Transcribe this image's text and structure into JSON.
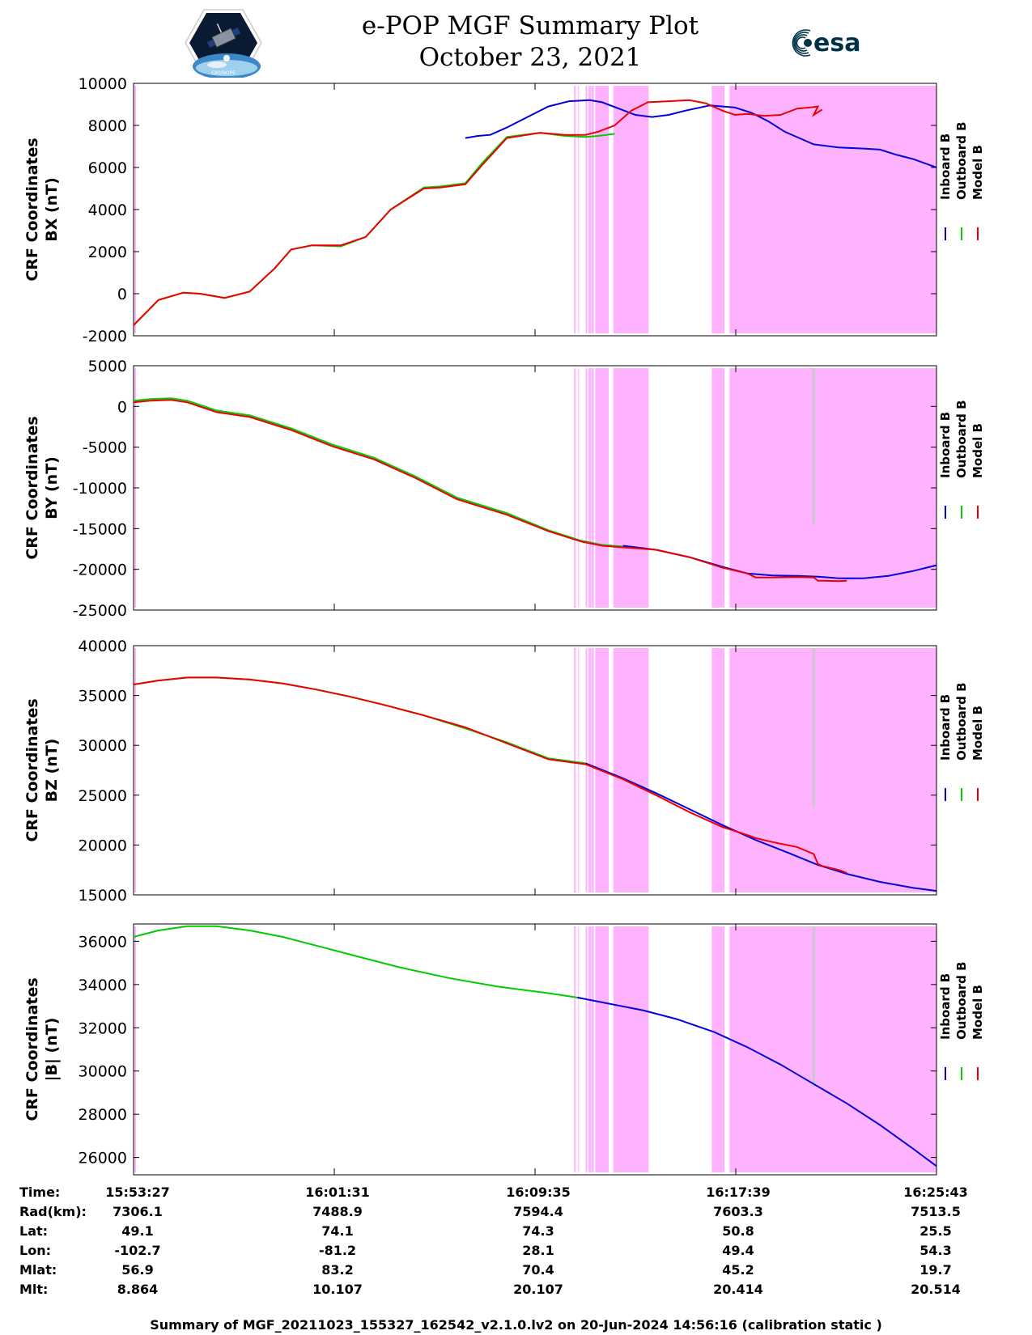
{
  "header": {
    "title": "e-POP MGF Summary Plot",
    "date": "October 23, 2021",
    "left_logo_icon": "cassiope-mission-logo",
    "left_logo_text": "CASSIOPE",
    "right_logo_icon": "esa-logo",
    "right_logo_text": "esa"
  },
  "colors": {
    "inboard": "#0000dd",
    "outboard": "#00cc00",
    "model": "#ee0000",
    "shade": "#ffb3ff",
    "spike": "#c8c8c8"
  },
  "chart_data": [
    {
      "type": "line",
      "ylabel": "CRF Coordinates\nBX (nT)",
      "ylim": [
        -2000,
        10000
      ],
      "yticks": [
        -2000,
        0,
        2000,
        4000,
        6000,
        8000,
        10000
      ],
      "xlim": [
        0,
        1936
      ],
      "series": [
        {
          "name": "Inboard B",
          "color": "#0000dd",
          "x": [
            800,
            830,
            860,
            900,
            960,
            1000,
            1050,
            1100,
            1130,
            1170,
            1210,
            1250,
            1290,
            1330,
            1390,
            1450,
            1490,
            1530,
            1570,
            1640,
            1700,
            1760,
            1800,
            1840,
            1880,
            1936
          ],
          "y": [
            7400,
            7500,
            7550,
            7900,
            8500,
            8900,
            9150,
            9200,
            9100,
            8800,
            8500,
            8400,
            8500,
            8700,
            8950,
            8850,
            8600,
            8200,
            7700,
            7100,
            6950,
            6900,
            6850,
            6600,
            6400,
            6000
          ]
        },
        {
          "name": "Outboard B",
          "color": "#00cc00",
          "x": [
            0,
            60,
            120,
            160,
            220,
            280,
            340,
            380,
            430,
            500,
            560,
            620,
            700,
            740,
            800,
            840,
            900,
            980,
            1040,
            1090,
            1120,
            1160
          ],
          "y": [
            -1500,
            -300,
            50,
            0,
            -200,
            100,
            1200,
            2100,
            2300,
            2250,
            2700,
            4000,
            5050,
            5100,
            5250,
            6200,
            7450,
            7650,
            7500,
            7450,
            7500,
            7600
          ]
        },
        {
          "name": "Model B",
          "color": "#ee0000",
          "x": [
            0,
            60,
            120,
            160,
            220,
            280,
            340,
            380,
            430,
            500,
            560,
            620,
            700,
            740,
            800,
            840,
            900,
            980,
            1040,
            1090,
            1120,
            1160,
            1200,
            1240,
            1290,
            1340,
            1380,
            1420,
            1450,
            1480,
            1520,
            1560,
            1600,
            1630,
            1650,
            1640,
            1660
          ],
          "y": [
            -1500,
            -300,
            50,
            0,
            -200,
            100,
            1200,
            2100,
            2300,
            2300,
            2700,
            4000,
            5000,
            5050,
            5200,
            6100,
            7400,
            7650,
            7550,
            7550,
            7700,
            8000,
            8700,
            9100,
            9150,
            9200,
            9050,
            8700,
            8500,
            8550,
            8450,
            8500,
            8800,
            8850,
            8900,
            8500,
            8750
          ]
        }
      ]
    },
    {
      "type": "line",
      "ylabel": "CRF Coordinates\nBY (nT)",
      "ylim": [
        -25000,
        5000
      ],
      "yticks": [
        -25000,
        -20000,
        -15000,
        -10000,
        -5000,
        0,
        5000
      ],
      "xlim": [
        0,
        1936
      ],
      "series": [
        {
          "name": "Inboard B",
          "color": "#0000dd",
          "x": [
            1180,
            1260,
            1340,
            1420,
            1480,
            1540,
            1600,
            1650,
            1700,
            1760,
            1820,
            1880,
            1936
          ],
          "y": [
            -17100,
            -17600,
            -18500,
            -19700,
            -20500,
            -20750,
            -20800,
            -20900,
            -21100,
            -21100,
            -20800,
            -20200,
            -19500
          ]
        },
        {
          "name": "Outboard B",
          "color": "#00cc00",
          "x": [
            0,
            40,
            90,
            130,
            200,
            280,
            380,
            480,
            580,
            680,
            780,
            900,
            1000,
            1080,
            1130,
            1180
          ],
          "y": [
            700,
            900,
            1000,
            700,
            -500,
            -1100,
            -2700,
            -4700,
            -6300,
            -8600,
            -11200,
            -13100,
            -15200,
            -16500,
            -17000,
            -17200
          ]
        },
        {
          "name": "Model B",
          "color": "#ee0000",
          "x": [
            0,
            40,
            90,
            130,
            200,
            280,
            380,
            480,
            580,
            680,
            780,
            900,
            1000,
            1080,
            1130,
            1180,
            1260,
            1340,
            1420,
            1480,
            1500,
            1540,
            1600,
            1640,
            1650,
            1660,
            1700,
            1720
          ],
          "y": [
            500,
            700,
            800,
            500,
            -700,
            -1300,
            -2900,
            -4900,
            -6500,
            -8800,
            -11400,
            -13300,
            -15300,
            -16600,
            -17100,
            -17300,
            -17600,
            -18500,
            -19800,
            -20500,
            -21000,
            -21000,
            -20950,
            -21000,
            -21400,
            -21400,
            -21450,
            -21400
          ]
        }
      ]
    },
    {
      "type": "line",
      "ylabel": "CRF Coordinates\nBZ (nT)",
      "ylim": [
        15000,
        40000
      ],
      "yticks": [
        15000,
        20000,
        25000,
        30000,
        35000,
        40000
      ],
      "xlim": [
        0,
        1936
      ],
      "series": [
        {
          "name": "Inboard B",
          "color": "#0000dd",
          "x": [
            1090,
            1180,
            1260,
            1340,
            1420,
            1500,
            1580,
            1650,
            1720,
            1800,
            1880,
            1936
          ],
          "y": [
            28200,
            26700,
            25200,
            23600,
            22000,
            20500,
            19200,
            18000,
            17100,
            16300,
            15700,
            15400
          ]
        },
        {
          "name": "Outboard B",
          "color": "#00cc00",
          "x": [
            0,
            60,
            130,
            200,
            280,
            360,
            440,
            520,
            600,
            700,
            800,
            900,
            1000,
            1090
          ],
          "y": [
            36100,
            36500,
            36800,
            36800,
            36600,
            36200,
            35600,
            34900,
            34100,
            33000,
            31700,
            30300,
            28700,
            28200
          ]
        },
        {
          "name": "Model B",
          "color": "#ee0000",
          "x": [
            0,
            60,
            130,
            200,
            280,
            360,
            440,
            520,
            600,
            700,
            800,
            900,
            1000,
            1090,
            1180,
            1260,
            1340,
            1420,
            1480,
            1500,
            1540,
            1600,
            1640,
            1650,
            1660,
            1700,
            1720
          ],
          "y": [
            36100,
            36500,
            36800,
            36800,
            36600,
            36200,
            35600,
            34900,
            34100,
            33000,
            31800,
            30200,
            28600,
            28100,
            26600,
            25000,
            23300,
            21800,
            21000,
            20700,
            20300,
            19800,
            19100,
            18100,
            17900,
            17500,
            17200
          ]
        }
      ]
    },
    {
      "type": "line",
      "ylabel": "CRF Coordinates\n|B| (nT)",
      "ylim": [
        25200,
        36800
      ],
      "yticks": [
        26000,
        28000,
        30000,
        32000,
        34000,
        36000
      ],
      "xlim": [
        0,
        1936
      ],
      "series": [
        {
          "name": "Inboard B",
          "color": "#0000dd",
          "x": [
            1070,
            1150,
            1230,
            1310,
            1400,
            1480,
            1560,
            1640,
            1720,
            1800,
            1880,
            1936
          ],
          "y": [
            33400,
            33100,
            32800,
            32400,
            31800,
            31100,
            30300,
            29400,
            28500,
            27500,
            26400,
            25600
          ]
        },
        {
          "name": "Outboard B",
          "color": "#00cc00",
          "x": [
            0,
            60,
            130,
            200,
            280,
            360,
            440,
            540,
            640,
            760,
            880,
            1000,
            1070
          ],
          "y": [
            36200,
            36500,
            36700,
            36700,
            36500,
            36200,
            35800,
            35300,
            34800,
            34300,
            33900,
            33600,
            33400
          ]
        },
        {
          "name": "Model B",
          "color": "#ee0000",
          "x": [],
          "y": []
        }
      ]
    }
  ],
  "shaded_intervals": [
    [
      1062,
      1066
    ],
    [
      1072,
      1074
    ],
    [
      1090,
      1094
    ],
    [
      1097,
      1103
    ],
    [
      1104,
      1110
    ],
    [
      1113,
      1146
    ],
    [
      1157,
      1242
    ],
    [
      1394,
      1425
    ],
    [
      1437,
      1936
    ]
  ],
  "x_tick_positions": [
    0,
    484,
    968,
    1452,
    1936
  ],
  "legend": [
    "Inboard B",
    "Outboard B",
    "Model B"
  ],
  "info_table": {
    "rows": [
      {
        "label": "Time:",
        "values": [
          "15:53:27",
          "16:01:31",
          "16:09:35",
          "16:17:39",
          "16:25:43"
        ]
      },
      {
        "label": "Rad(km):",
        "values": [
          "7306.1",
          "7488.9",
          "7594.4",
          "7603.3",
          "7513.5"
        ]
      },
      {
        "label": "Lat:",
        "values": [
          "49.1",
          "74.1",
          "74.3",
          "50.8",
          "25.5"
        ]
      },
      {
        "label": "Lon:",
        "values": [
          "-102.7",
          "-81.2",
          "28.1",
          "49.4",
          "54.3"
        ]
      },
      {
        "label": "Mlat:",
        "values": [
          "56.9",
          "83.2",
          "70.4",
          "45.2",
          "19.7"
        ]
      },
      {
        "label": "Mlt:",
        "values": [
          "8.864",
          "10.107",
          "20.107",
          "20.414",
          "20.514"
        ]
      }
    ]
  },
  "footer": "Summary of MGF_20211023_155327_162542_v2.1.0.lv2 on 20-Jun-2024 14:56:16 (calibration static )"
}
